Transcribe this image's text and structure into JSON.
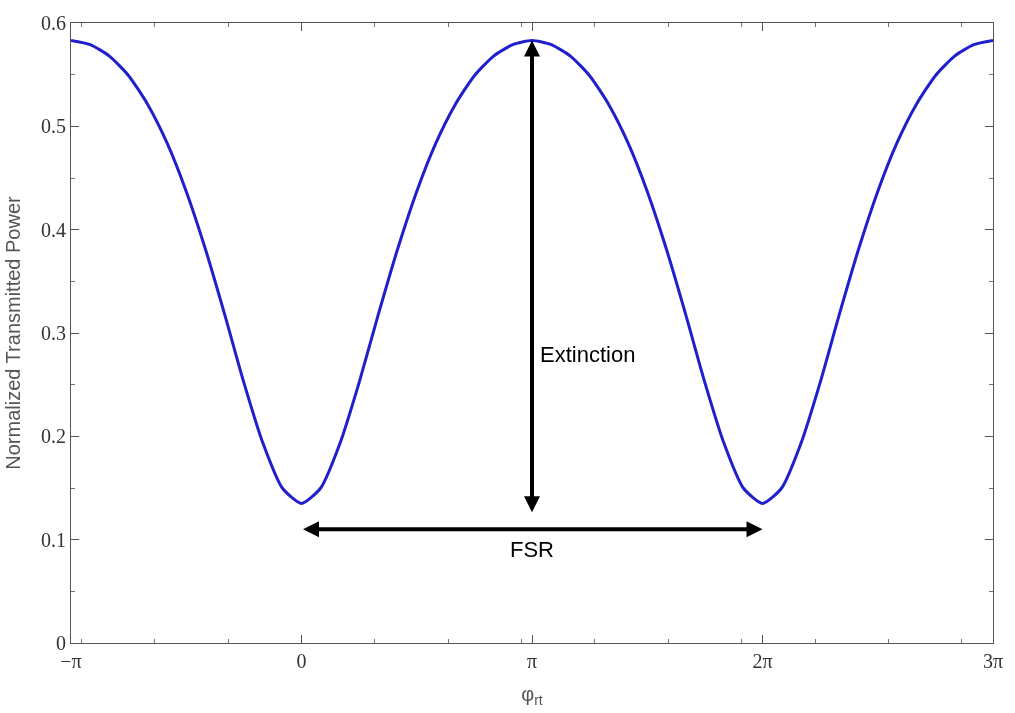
{
  "chart_data": {
    "type": "line",
    "xlabel": "φ$_{rt}$",
    "ylabel": "Normalized Transmitted Power",
    "x": [
      -3.1416,
      -2.8798,
      -2.618,
      -2.3562,
      -2.0944,
      -1.8326,
      -1.5708,
      -1.309,
      -1.0472,
      -0.7854,
      -0.5236,
      -0.2618,
      0,
      0.2618,
      0.5236,
      0.7854,
      1.0472,
      1.309,
      1.5708,
      1.8326,
      2.0944,
      2.3562,
      2.618,
      2.8798,
      3.1416,
      3.4034,
      3.6652,
      3.927,
      4.1888,
      4.4506,
      4.7124,
      4.9742,
      5.236,
      5.4978,
      5.7596,
      6.0214,
      6.2832,
      6.545,
      6.8068,
      7.0686,
      7.3304,
      7.5922,
      7.854,
      8.1158,
      8.3776,
      8.6394,
      8.9012,
      9.163,
      9.4248
    ],
    "series": [
      {
        "color": "#1f1fcc",
        "values": [
          0.583,
          0.579,
          0.568,
          0.549,
          0.521,
          0.484,
          0.437,
          0.381,
          0.318,
          0.252,
          0.193,
          0.15,
          0.135,
          0.15,
          0.193,
          0.252,
          0.318,
          0.381,
          0.437,
          0.484,
          0.521,
          0.549,
          0.568,
          0.579,
          0.583,
          0.579,
          0.568,
          0.549,
          0.521,
          0.484,
          0.437,
          0.381,
          0.318,
          0.252,
          0.193,
          0.15,
          0.135,
          0.15,
          0.193,
          0.252,
          0.318,
          0.381,
          0.437,
          0.484,
          0.521,
          0.549,
          0.568,
          0.579,
          0.583
        ]
      }
    ],
    "xlim": [
      -3.1416,
      9.4248
    ],
    "xticks": [
      {
        "value": -3.1416,
        "label": "−π"
      },
      0,
      {
        "value": 3.1416,
        "label": "π"
      },
      {
        "value": 6.2832,
        "label": "2π"
      },
      {
        "value": 9.4248,
        "label": "3π"
      }
    ],
    "ylim": [
      0,
      0.6
    ],
    "yticks": [
      0,
      0.1,
      0.2,
      0.3,
      0.4,
      0.5,
      0.6
    ],
    "annotations": [
      "Extinction",
      "FSR"
    ],
    "marker": "none",
    "line_style": "solid"
  }
}
